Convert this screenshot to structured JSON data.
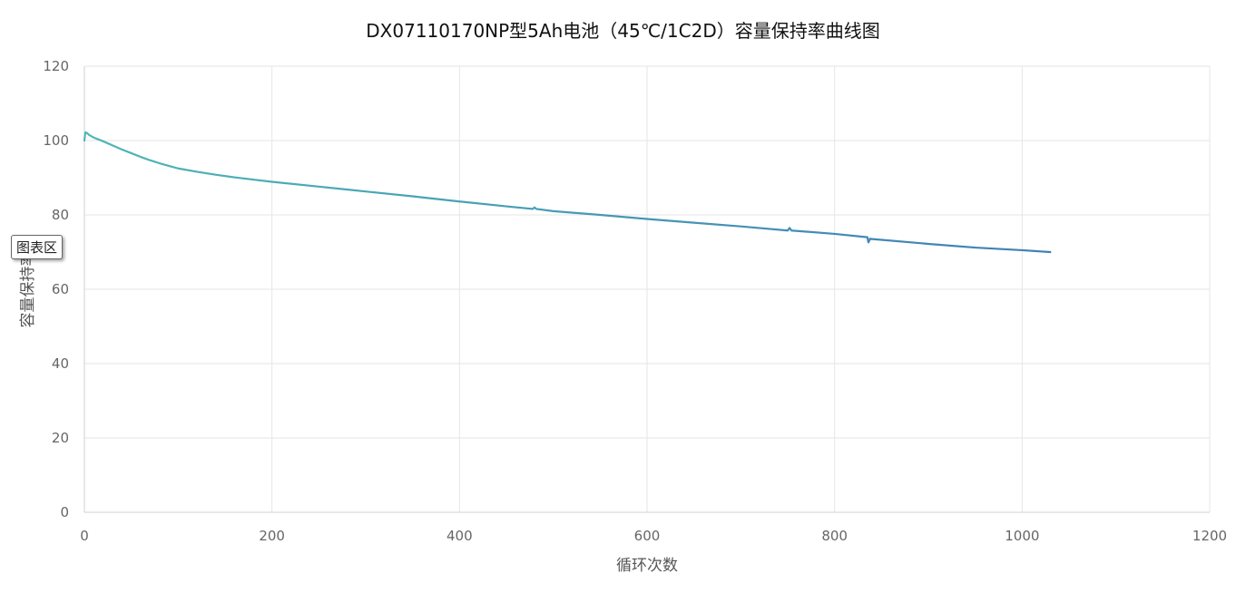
{
  "chart_data": {
    "type": "line",
    "title": "DX07110170NP型5Ah电池（45℃/1C2D）容量保持率曲线图",
    "xlabel": "循环次数",
    "ylabel": "容量保持率",
    "xlim": [
      0,
      1200
    ],
    "ylim": [
      0,
      120
    ],
    "xticks": [
      "0",
      "200",
      "400",
      "600",
      "800",
      "1000",
      "1200"
    ],
    "yticks": [
      "0",
      "20",
      "40",
      "60",
      "80",
      "100",
      "120"
    ],
    "grid": true,
    "colors": {
      "line_start": "#4fb6b6",
      "line_end": "#3f7fb5",
      "grid": "#e6e6e6",
      "axis": "#d0d0d0"
    },
    "series": [
      {
        "x": [
          0,
          1,
          3,
          5,
          10,
          20,
          30,
          40,
          50,
          60,
          70,
          80,
          90,
          100,
          120,
          140,
          160,
          180,
          200,
          250,
          300,
          350,
          400,
          450,
          478,
          480,
          482,
          500,
          550,
          600,
          650,
          700,
          750,
          752,
          754,
          800,
          835,
          836,
          838,
          840,
          850,
          900,
          950,
          1000,
          1030
        ],
        "y": [
          100,
          102.2,
          102,
          101.5,
          100.8,
          99.8,
          98.7,
          97.6,
          96.6,
          95.6,
          94.7,
          93.9,
          93.2,
          92.5,
          91.6,
          90.8,
          90.1,
          89.5,
          88.9,
          87.6,
          86.3,
          85.0,
          83.6,
          82.3,
          81.6,
          82.0,
          81.6,
          81.0,
          80.0,
          78.9,
          77.9,
          76.9,
          75.8,
          76.5,
          75.8,
          74.9,
          74.0,
          72.6,
          73.6,
          73.5,
          73.3,
          72.2,
          71.2,
          70.5,
          70.0
        ]
      }
    ]
  },
  "overlay": {
    "tooltip_label": "图表区"
  }
}
